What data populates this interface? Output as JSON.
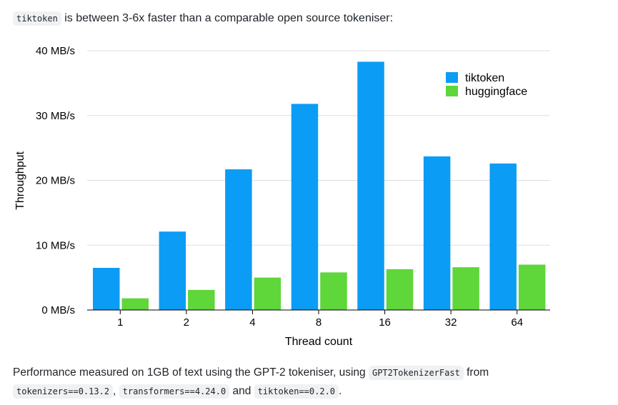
{
  "intro": {
    "code": "tiktoken",
    "text": " is between 3-6x faster than a comparable open source tokeniser:"
  },
  "footer": {
    "part1": "Performance measured on 1GB of text using the GPT-2 tokeniser, using ",
    "code1": "GPT2TokenizerFast",
    "part2": " from",
    "code2": "tokenizers==0.13.2",
    "part3": ", ",
    "code3": "transformers==4.24.0",
    "part4": " and ",
    "code4": "tiktoken==0.2.0",
    "part5": "."
  },
  "chart_data": {
    "type": "bar",
    "xlabel": "Thread count",
    "ylabel": "Throughput",
    "categories": [
      "1",
      "2",
      "4",
      "8",
      "16",
      "32",
      "64"
    ],
    "series": [
      {
        "name": "tiktoken",
        "color": "#0b9cf5",
        "values": [
          6.5,
          12.1,
          21.7,
          31.8,
          38.3,
          23.7,
          22.6
        ]
      },
      {
        "name": "huggingface",
        "color": "#5fd63a",
        "values": [
          1.8,
          3.1,
          5.0,
          5.8,
          6.3,
          6.6,
          7.0
        ]
      }
    ],
    "ylim": [
      0,
      40
    ],
    "yticks": [
      {
        "value": 0,
        "label": "0 MB/s"
      },
      {
        "value": 10,
        "label": "10 MB/s"
      },
      {
        "value": 20,
        "label": "20 MB/s"
      },
      {
        "value": 30,
        "label": "30 MB/s"
      },
      {
        "value": 40,
        "label": "40 MB/s"
      }
    ],
    "grid": true,
    "legend": "top-right",
    "grid_color": "#dddddd"
  }
}
